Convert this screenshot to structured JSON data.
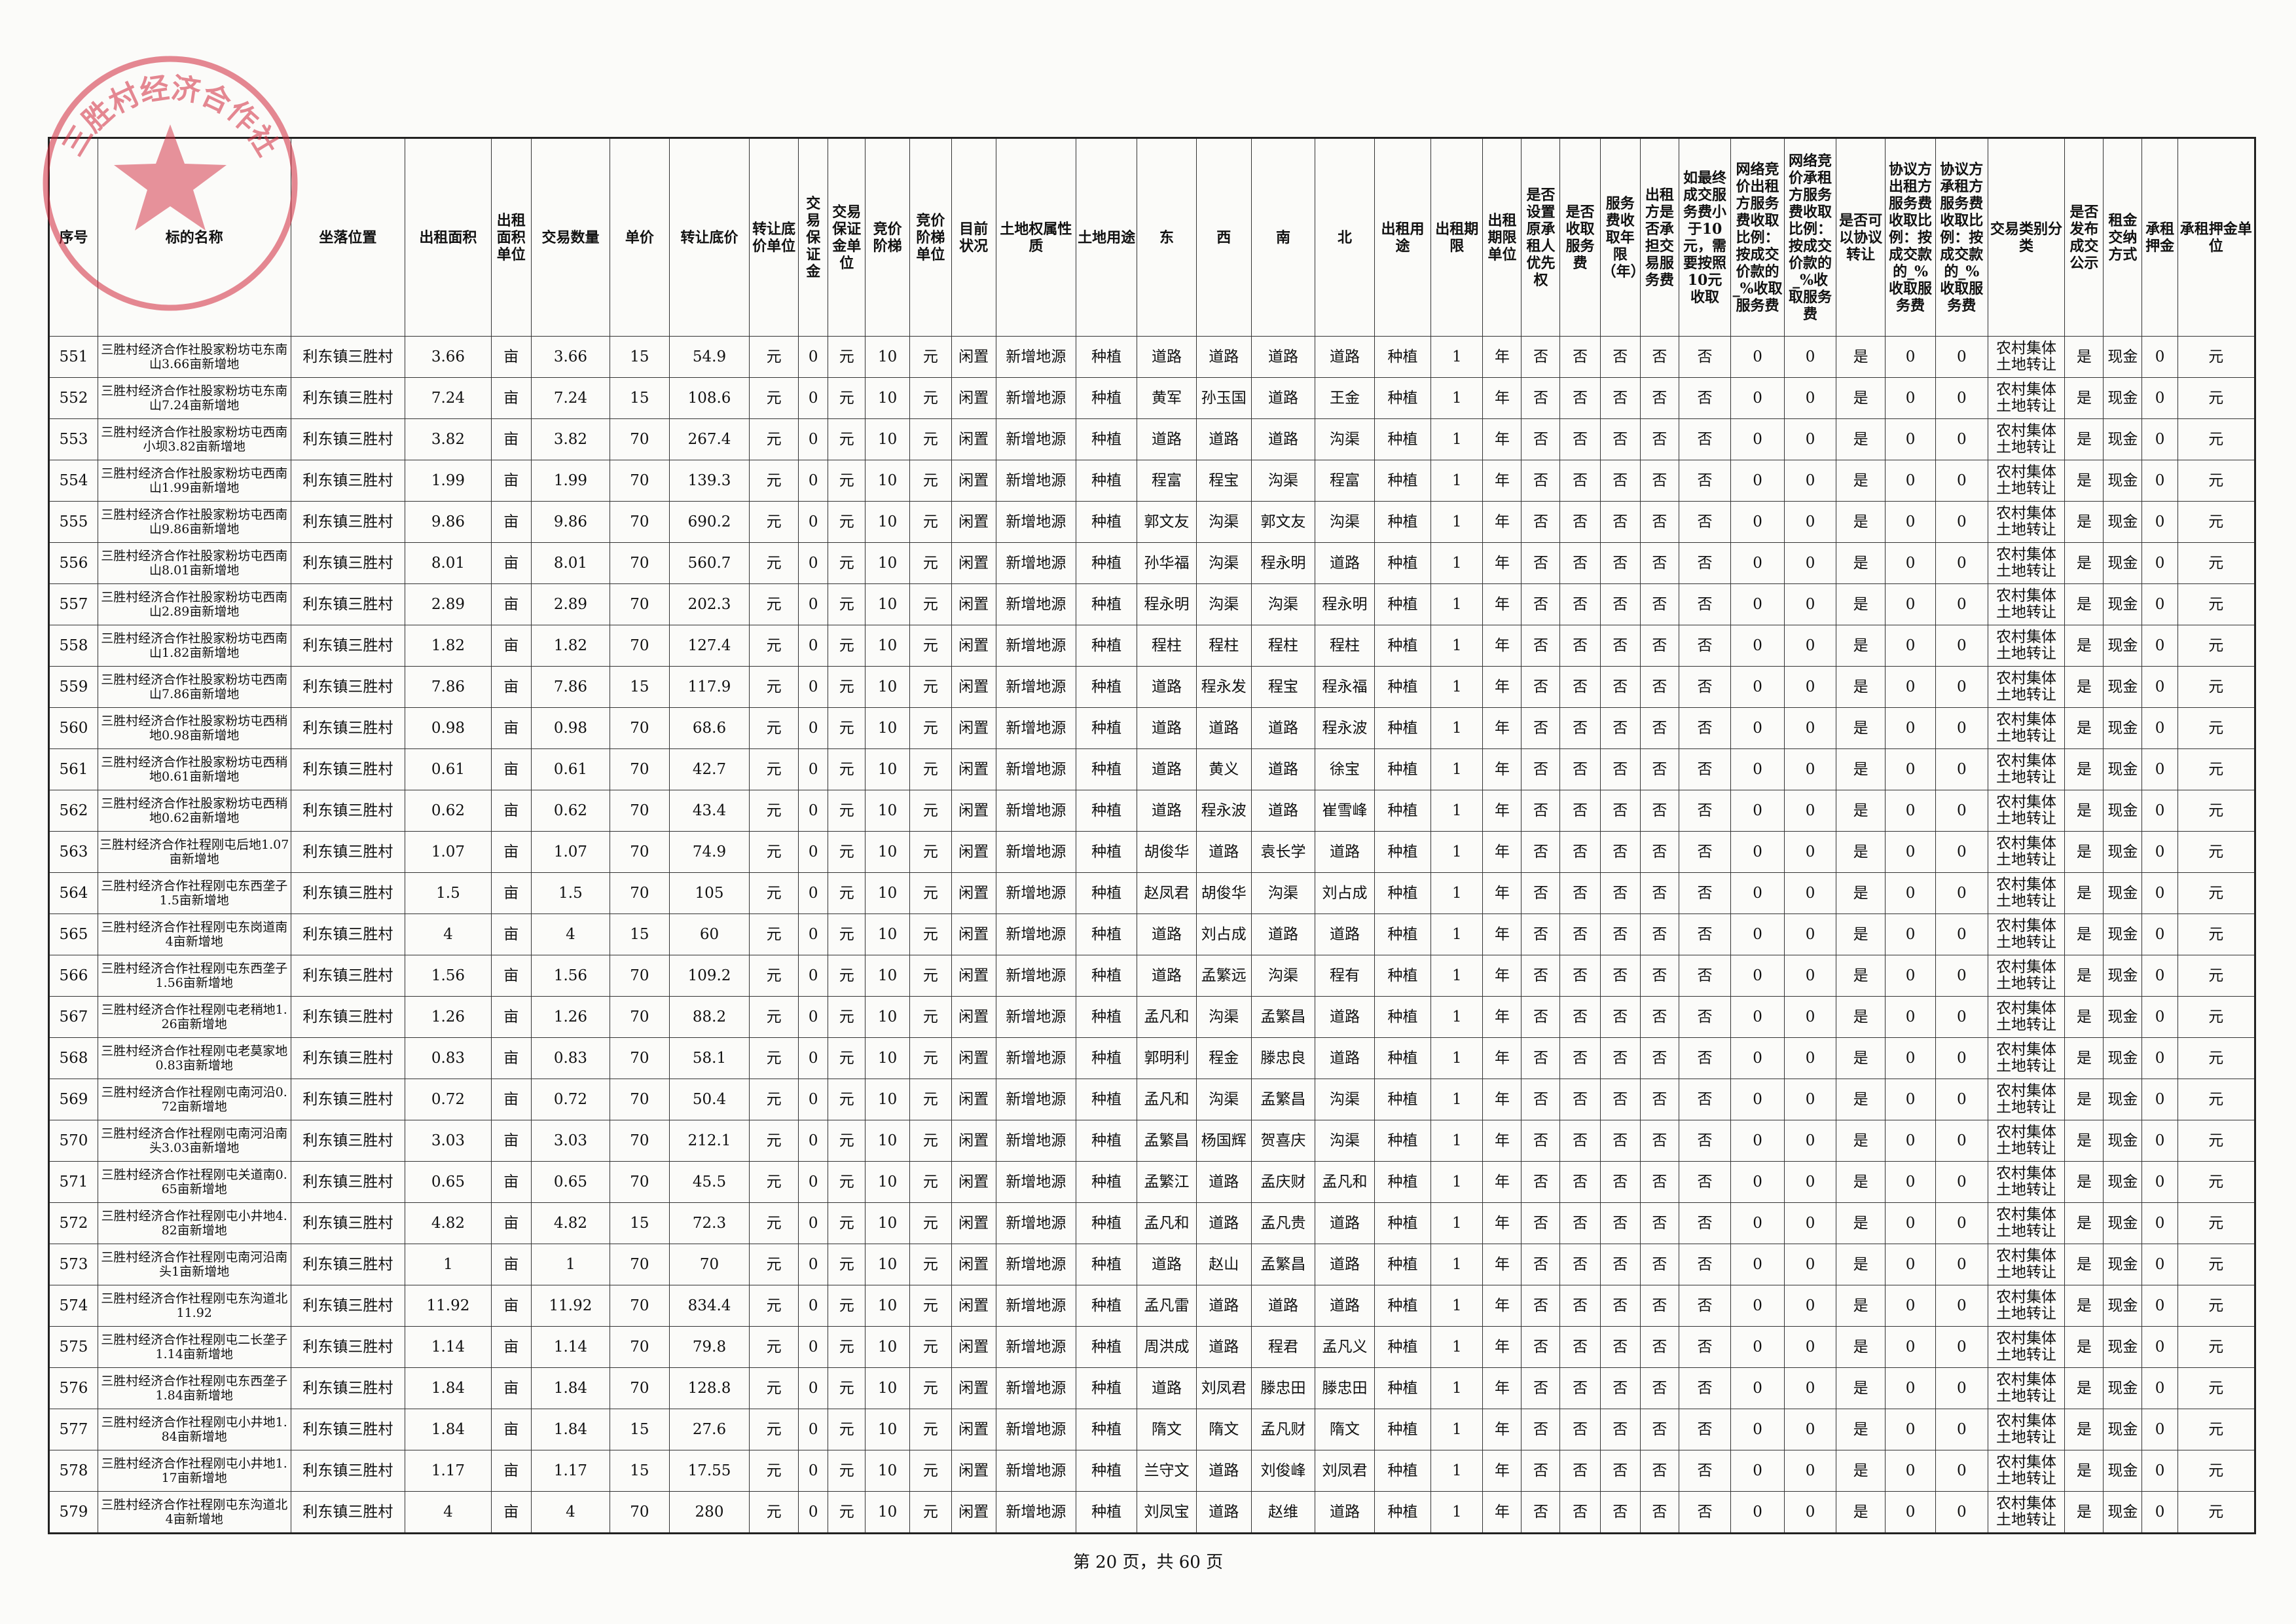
{
  "table": {
    "header": [
      "序号",
      "标的名称",
      "坐落位置",
      "出租面积",
      "出租面积单位",
      "交易数量",
      "单价",
      "转让底价",
      "转让底价单位",
      "交易保证金",
      "交易保证金单位",
      "竞价阶梯",
      "竞价阶梯单位",
      "目前状况",
      "土地权属性质",
      "土地用途",
      "东",
      "西",
      "南",
      "北",
      "出租用途",
      "出租期限",
      "出租期限单位",
      "是否设置原承租人优先权",
      "是否收取服务费",
      "服务费收取年限（年）",
      "出租方是否承担交易服务费",
      "如最终成交服务费小于10元，需要按照10元收取",
      "网络竞价出租方服务费收取比例：按成交价款的_%收取服务费",
      "网络竞价承租方服务费收取比例：按成交价款的_%收取服务费",
      "是否可以协议转让",
      "协议方出租方服务费收取比例：按成交款的_%收取服务费",
      "协议方承租方服务费收取比例：按成交款的_%收取服务费",
      "交易类别分类",
      "是否发布成交公示",
      "租金交纳方式",
      "承租押金",
      "承租押金单位"
    ],
    "rows": [
      [
        "551",
        "三胜村经济合作社股家粉坊屯东南山3.66亩新增地",
        "利东镇三胜村",
        "3.66",
        "亩",
        "3.66",
        "15",
        "54.9",
        "元",
        "0",
        "元",
        "10",
        "元",
        "闲置",
        "新增地源",
        "种植",
        "道路",
        "道路",
        "道路",
        "道路",
        "种植",
        "1",
        "年",
        "否",
        "否",
        "否",
        "否",
        "否",
        "0",
        "0",
        "是",
        "0",
        "0",
        "农村集体土地转让",
        "是",
        "现金",
        "0",
        "元"
      ],
      [
        "552",
        "三胜村经济合作社股家粉坊屯东南山7.24亩新增地",
        "利东镇三胜村",
        "7.24",
        "亩",
        "7.24",
        "15",
        "108.6",
        "元",
        "0",
        "元",
        "10",
        "元",
        "闲置",
        "新增地源",
        "种植",
        "黄军",
        "孙玉国",
        "道路",
        "王金",
        "种植",
        "1",
        "年",
        "否",
        "否",
        "否",
        "否",
        "否",
        "0",
        "0",
        "是",
        "0",
        "0",
        "农村集体土地转让",
        "是",
        "现金",
        "0",
        "元"
      ],
      [
        "553",
        "三胜村经济合作社股家粉坊屯西南小坝3.82亩新增地",
        "利东镇三胜村",
        "3.82",
        "亩",
        "3.82",
        "70",
        "267.4",
        "元",
        "0",
        "元",
        "10",
        "元",
        "闲置",
        "新增地源",
        "种植",
        "道路",
        "道路",
        "道路",
        "沟渠",
        "种植",
        "1",
        "年",
        "否",
        "否",
        "否",
        "否",
        "否",
        "0",
        "0",
        "是",
        "0",
        "0",
        "农村集体土地转让",
        "是",
        "现金",
        "0",
        "元"
      ],
      [
        "554",
        "三胜村经济合作社股家粉坊屯西南山1.99亩新增地",
        "利东镇三胜村",
        "1.99",
        "亩",
        "1.99",
        "70",
        "139.3",
        "元",
        "0",
        "元",
        "10",
        "元",
        "闲置",
        "新增地源",
        "种植",
        "程富",
        "程宝",
        "沟渠",
        "程富",
        "种植",
        "1",
        "年",
        "否",
        "否",
        "否",
        "否",
        "否",
        "0",
        "0",
        "是",
        "0",
        "0",
        "农村集体土地转让",
        "是",
        "现金",
        "0",
        "元"
      ],
      [
        "555",
        "三胜村经济合作社股家粉坊屯西南山9.86亩新增地",
        "利东镇三胜村",
        "9.86",
        "亩",
        "9.86",
        "70",
        "690.2",
        "元",
        "0",
        "元",
        "10",
        "元",
        "闲置",
        "新增地源",
        "种植",
        "郭文友",
        "沟渠",
        "郭文友",
        "沟渠",
        "种植",
        "1",
        "年",
        "否",
        "否",
        "否",
        "否",
        "否",
        "0",
        "0",
        "是",
        "0",
        "0",
        "农村集体土地转让",
        "是",
        "现金",
        "0",
        "元"
      ],
      [
        "556",
        "三胜村经济合作社股家粉坊屯西南山8.01亩新增地",
        "利东镇三胜村",
        "8.01",
        "亩",
        "8.01",
        "70",
        "560.7",
        "元",
        "0",
        "元",
        "10",
        "元",
        "闲置",
        "新增地源",
        "种植",
        "孙华福",
        "沟渠",
        "程永明",
        "道路",
        "种植",
        "1",
        "年",
        "否",
        "否",
        "否",
        "否",
        "否",
        "0",
        "0",
        "是",
        "0",
        "0",
        "农村集体土地转让",
        "是",
        "现金",
        "0",
        "元"
      ],
      [
        "557",
        "三胜村经济合作社股家粉坊屯西南山2.89亩新增地",
        "利东镇三胜村",
        "2.89",
        "亩",
        "2.89",
        "70",
        "202.3",
        "元",
        "0",
        "元",
        "10",
        "元",
        "闲置",
        "新增地源",
        "种植",
        "程永明",
        "沟渠",
        "沟渠",
        "程永明",
        "种植",
        "1",
        "年",
        "否",
        "否",
        "否",
        "否",
        "否",
        "0",
        "0",
        "是",
        "0",
        "0",
        "农村集体土地转让",
        "是",
        "现金",
        "0",
        "元"
      ],
      [
        "558",
        "三胜村经济合作社股家粉坊屯西南山1.82亩新增地",
        "利东镇三胜村",
        "1.82",
        "亩",
        "1.82",
        "70",
        "127.4",
        "元",
        "0",
        "元",
        "10",
        "元",
        "闲置",
        "新增地源",
        "种植",
        "程柱",
        "程柱",
        "程柱",
        "程柱",
        "种植",
        "1",
        "年",
        "否",
        "否",
        "否",
        "否",
        "否",
        "0",
        "0",
        "是",
        "0",
        "0",
        "农村集体土地转让",
        "是",
        "现金",
        "0",
        "元"
      ],
      [
        "559",
        "三胜村经济合作社股家粉坊屯西南山7.86亩新增地",
        "利东镇三胜村",
        "7.86",
        "亩",
        "7.86",
        "15",
        "117.9",
        "元",
        "0",
        "元",
        "10",
        "元",
        "闲置",
        "新增地源",
        "种植",
        "道路",
        "程永发",
        "程宝",
        "程永福",
        "种植",
        "1",
        "年",
        "否",
        "否",
        "否",
        "否",
        "否",
        "0",
        "0",
        "是",
        "0",
        "0",
        "农村集体土地转让",
        "是",
        "现金",
        "0",
        "元"
      ],
      [
        "560",
        "三胜村经济合作社股家粉坊屯西稍地0.98亩新增地",
        "利东镇三胜村",
        "0.98",
        "亩",
        "0.98",
        "70",
        "68.6",
        "元",
        "0",
        "元",
        "10",
        "元",
        "闲置",
        "新增地源",
        "种植",
        "道路",
        "道路",
        "道路",
        "程永波",
        "种植",
        "1",
        "年",
        "否",
        "否",
        "否",
        "否",
        "否",
        "0",
        "0",
        "是",
        "0",
        "0",
        "农村集体土地转让",
        "是",
        "现金",
        "0",
        "元"
      ],
      [
        "561",
        "三胜村经济合作社股家粉坊屯西稍地0.61亩新增地",
        "利东镇三胜村",
        "0.61",
        "亩",
        "0.61",
        "70",
        "42.7",
        "元",
        "0",
        "元",
        "10",
        "元",
        "闲置",
        "新增地源",
        "种植",
        "道路",
        "黄义",
        "道路",
        "徐宝",
        "种植",
        "1",
        "年",
        "否",
        "否",
        "否",
        "否",
        "否",
        "0",
        "0",
        "是",
        "0",
        "0",
        "农村集体土地转让",
        "是",
        "现金",
        "0",
        "元"
      ],
      [
        "562",
        "三胜村经济合作社股家粉坊屯西稍地0.62亩新增地",
        "利东镇三胜村",
        "0.62",
        "亩",
        "0.62",
        "70",
        "43.4",
        "元",
        "0",
        "元",
        "10",
        "元",
        "闲置",
        "新增地源",
        "种植",
        "道路",
        "程永波",
        "道路",
        "崔雪峰",
        "种植",
        "1",
        "年",
        "否",
        "否",
        "否",
        "否",
        "否",
        "0",
        "0",
        "是",
        "0",
        "0",
        "农村集体土地转让",
        "是",
        "现金",
        "0",
        "元"
      ],
      [
        "563",
        "三胜村经济合作社程刚屯后地1.07亩新增地",
        "利东镇三胜村",
        "1.07",
        "亩",
        "1.07",
        "70",
        "74.9",
        "元",
        "0",
        "元",
        "10",
        "元",
        "闲置",
        "新增地源",
        "种植",
        "胡俊华",
        "道路",
        "袁长学",
        "道路",
        "种植",
        "1",
        "年",
        "否",
        "否",
        "否",
        "否",
        "否",
        "0",
        "0",
        "是",
        "0",
        "0",
        "农村集体土地转让",
        "是",
        "现金",
        "0",
        "元"
      ],
      [
        "564",
        "三胜村经济合作社程刚屯东西垄子1.5亩新增地",
        "利东镇三胜村",
        "1.5",
        "亩",
        "1.5",
        "70",
        "105",
        "元",
        "0",
        "元",
        "10",
        "元",
        "闲置",
        "新增地源",
        "种植",
        "赵凤君",
        "胡俊华",
        "沟渠",
        "刘占成",
        "种植",
        "1",
        "年",
        "否",
        "否",
        "否",
        "否",
        "否",
        "0",
        "0",
        "是",
        "0",
        "0",
        "农村集体土地转让",
        "是",
        "现金",
        "0",
        "元"
      ],
      [
        "565",
        "三胜村经济合作社程刚屯东岗道南4亩新增地",
        "利东镇三胜村",
        "4",
        "亩",
        "4",
        "15",
        "60",
        "元",
        "0",
        "元",
        "10",
        "元",
        "闲置",
        "新增地源",
        "种植",
        "道路",
        "刘占成",
        "道路",
        "道路",
        "种植",
        "1",
        "年",
        "否",
        "否",
        "否",
        "否",
        "否",
        "0",
        "0",
        "是",
        "0",
        "0",
        "农村集体土地转让",
        "是",
        "现金",
        "0",
        "元"
      ],
      [
        "566",
        "三胜村经济合作社程刚屯东西垄子1.56亩新增地",
        "利东镇三胜村",
        "1.56",
        "亩",
        "1.56",
        "70",
        "109.2",
        "元",
        "0",
        "元",
        "10",
        "元",
        "闲置",
        "新增地源",
        "种植",
        "道路",
        "孟繁远",
        "沟渠",
        "程有",
        "种植",
        "1",
        "年",
        "否",
        "否",
        "否",
        "否",
        "否",
        "0",
        "0",
        "是",
        "0",
        "0",
        "农村集体土地转让",
        "是",
        "现金",
        "0",
        "元"
      ],
      [
        "567",
        "三胜村经济合作社程刚屯老稍地1.26亩新增地",
        "利东镇三胜村",
        "1.26",
        "亩",
        "1.26",
        "70",
        "88.2",
        "元",
        "0",
        "元",
        "10",
        "元",
        "闲置",
        "新增地源",
        "种植",
        "孟凡和",
        "沟渠",
        "孟繁昌",
        "道路",
        "种植",
        "1",
        "年",
        "否",
        "否",
        "否",
        "否",
        "否",
        "0",
        "0",
        "是",
        "0",
        "0",
        "农村集体土地转让",
        "是",
        "现金",
        "0",
        "元"
      ],
      [
        "568",
        "三胜村经济合作社程刚屯老莫家地0.83亩新增地",
        "利东镇三胜村",
        "0.83",
        "亩",
        "0.83",
        "70",
        "58.1",
        "元",
        "0",
        "元",
        "10",
        "元",
        "闲置",
        "新增地源",
        "种植",
        "郭明利",
        "程金",
        "滕忠良",
        "道路",
        "种植",
        "1",
        "年",
        "否",
        "否",
        "否",
        "否",
        "否",
        "0",
        "0",
        "是",
        "0",
        "0",
        "农村集体土地转让",
        "是",
        "现金",
        "0",
        "元"
      ],
      [
        "569",
        "三胜村经济合作社程刚屯南河沿0.72亩新增地",
        "利东镇三胜村",
        "0.72",
        "亩",
        "0.72",
        "70",
        "50.4",
        "元",
        "0",
        "元",
        "10",
        "元",
        "闲置",
        "新增地源",
        "种植",
        "孟凡和",
        "沟渠",
        "孟繁昌",
        "沟渠",
        "种植",
        "1",
        "年",
        "否",
        "否",
        "否",
        "否",
        "否",
        "0",
        "0",
        "是",
        "0",
        "0",
        "农村集体土地转让",
        "是",
        "现金",
        "0",
        "元"
      ],
      [
        "570",
        "三胜村经济合作社程刚屯南河沿南头3.03亩新增地",
        "利东镇三胜村",
        "3.03",
        "亩",
        "3.03",
        "70",
        "212.1",
        "元",
        "0",
        "元",
        "10",
        "元",
        "闲置",
        "新增地源",
        "种植",
        "孟繁昌",
        "杨国辉",
        "贺喜庆",
        "沟渠",
        "种植",
        "1",
        "年",
        "否",
        "否",
        "否",
        "否",
        "否",
        "0",
        "0",
        "是",
        "0",
        "0",
        "农村集体土地转让",
        "是",
        "现金",
        "0",
        "元"
      ],
      [
        "571",
        "三胜村经济合作社程刚屯关道南0.65亩新增地",
        "利东镇三胜村",
        "0.65",
        "亩",
        "0.65",
        "70",
        "45.5",
        "元",
        "0",
        "元",
        "10",
        "元",
        "闲置",
        "新增地源",
        "种植",
        "孟繁江",
        "道路",
        "孟庆财",
        "孟凡和",
        "种植",
        "1",
        "年",
        "否",
        "否",
        "否",
        "否",
        "否",
        "0",
        "0",
        "是",
        "0",
        "0",
        "农村集体土地转让",
        "是",
        "现金",
        "0",
        "元"
      ],
      [
        "572",
        "三胜村经济合作社程刚屯小井地4.82亩新增地",
        "利东镇三胜村",
        "4.82",
        "亩",
        "4.82",
        "15",
        "72.3",
        "元",
        "0",
        "元",
        "10",
        "元",
        "闲置",
        "新增地源",
        "种植",
        "孟凡和",
        "道路",
        "孟凡贵",
        "道路",
        "种植",
        "1",
        "年",
        "否",
        "否",
        "否",
        "否",
        "否",
        "0",
        "0",
        "是",
        "0",
        "0",
        "农村集体土地转让",
        "是",
        "现金",
        "0",
        "元"
      ],
      [
        "573",
        "三胜村经济合作社程刚屯南河沿南头1亩新增地",
        "利东镇三胜村",
        "1",
        "亩",
        "1",
        "70",
        "70",
        "元",
        "0",
        "元",
        "10",
        "元",
        "闲置",
        "新增地源",
        "种植",
        "道路",
        "赵山",
        "孟繁昌",
        "道路",
        "种植",
        "1",
        "年",
        "否",
        "否",
        "否",
        "否",
        "否",
        "0",
        "0",
        "是",
        "0",
        "0",
        "农村集体土地转让",
        "是",
        "现金",
        "0",
        "元"
      ],
      [
        "574",
        "三胜村经济合作社程刚屯东沟道北11.92",
        "利东镇三胜村",
        "11.92",
        "亩",
        "11.92",
        "70",
        "834.4",
        "元",
        "0",
        "元",
        "10",
        "元",
        "闲置",
        "新增地源",
        "种植",
        "孟凡雷",
        "道路",
        "道路",
        "道路",
        "种植",
        "1",
        "年",
        "否",
        "否",
        "否",
        "否",
        "否",
        "0",
        "0",
        "是",
        "0",
        "0",
        "农村集体土地转让",
        "是",
        "现金",
        "0",
        "元"
      ],
      [
        "575",
        "三胜村经济合作社程刚屯二长垄子1.14亩新增地",
        "利东镇三胜村",
        "1.14",
        "亩",
        "1.14",
        "70",
        "79.8",
        "元",
        "0",
        "元",
        "10",
        "元",
        "闲置",
        "新增地源",
        "种植",
        "周洪成",
        "道路",
        "程君",
        "孟凡义",
        "种植",
        "1",
        "年",
        "否",
        "否",
        "否",
        "否",
        "否",
        "0",
        "0",
        "是",
        "0",
        "0",
        "农村集体土地转让",
        "是",
        "现金",
        "0",
        "元"
      ],
      [
        "576",
        "三胜村经济合作社程刚屯东西垄子1.84亩新增地",
        "利东镇三胜村",
        "1.84",
        "亩",
        "1.84",
        "70",
        "128.8",
        "元",
        "0",
        "元",
        "10",
        "元",
        "闲置",
        "新增地源",
        "种植",
        "道路",
        "刘凤君",
        "滕忠田",
        "滕忠田",
        "种植",
        "1",
        "年",
        "否",
        "否",
        "否",
        "否",
        "否",
        "0",
        "0",
        "是",
        "0",
        "0",
        "农村集体土地转让",
        "是",
        "现金",
        "0",
        "元"
      ],
      [
        "577",
        "三胜村经济合作社程刚屯小井地1.84亩新增地",
        "利东镇三胜村",
        "1.84",
        "亩",
        "1.84",
        "15",
        "27.6",
        "元",
        "0",
        "元",
        "10",
        "元",
        "闲置",
        "新增地源",
        "种植",
        "隋文",
        "隋文",
        "孟凡财",
        "隋文",
        "种植",
        "1",
        "年",
        "否",
        "否",
        "否",
        "否",
        "否",
        "0",
        "0",
        "是",
        "0",
        "0",
        "农村集体土地转让",
        "是",
        "现金",
        "0",
        "元"
      ],
      [
        "578",
        "三胜村经济合作社程刚屯小井地1.17亩新增地",
        "利东镇三胜村",
        "1.17",
        "亩",
        "1.17",
        "15",
        "17.55",
        "元",
        "0",
        "元",
        "10",
        "元",
        "闲置",
        "新增地源",
        "种植",
        "兰守文",
        "道路",
        "刘俊峰",
        "刘凤君",
        "种植",
        "1",
        "年",
        "否",
        "否",
        "否",
        "否",
        "否",
        "0",
        "0",
        "是",
        "0",
        "0",
        "农村集体土地转让",
        "是",
        "现金",
        "0",
        "元"
      ],
      [
        "579",
        "三胜村经济合作社程刚屯东沟道北4亩新增地",
        "利东镇三胜村",
        "4",
        "亩",
        "4",
        "70",
        "280",
        "元",
        "0",
        "元",
        "10",
        "元",
        "闲置",
        "新增地源",
        "种植",
        "刘凤宝",
        "道路",
        "赵维",
        "道路",
        "种植",
        "1",
        "年",
        "否",
        "否",
        "否",
        "否",
        "否",
        "0",
        "0",
        "是",
        "0",
        "0",
        "农村集体土地转让",
        "是",
        "现金",
        "0",
        "元"
      ]
    ]
  },
  "stamp": "三胜村经济合作社",
  "footer": "第 20 页，共 60 页"
}
